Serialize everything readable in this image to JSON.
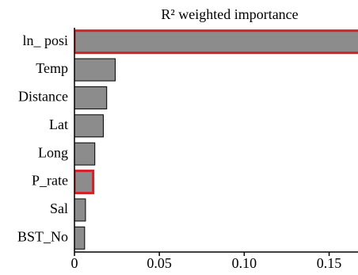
{
  "chart_data": {
    "type": "bar",
    "orientation": "horizontal",
    "title": "R² weighted importance",
    "categories": [
      "ln_ posi",
      "Temp",
      "Distance",
      "Lat",
      "Long",
      "P_rate",
      "Sal",
      "BST_No"
    ],
    "values": [
      0.17,
      0.024,
      0.019,
      0.017,
      0.012,
      0.011,
      0.0065,
      0.006
    ],
    "highlighted": [
      true,
      false,
      false,
      false,
      false,
      true,
      false,
      false
    ],
    "color": "#8c8c8c",
    "highlight_color": "#d42027",
    "xlim": [
      0,
      0.167
    ],
    "xticks": [
      0,
      0.05,
      {
        "value": 0.1,
        "label": "0.10"
      },
      0.15
    ]
  }
}
